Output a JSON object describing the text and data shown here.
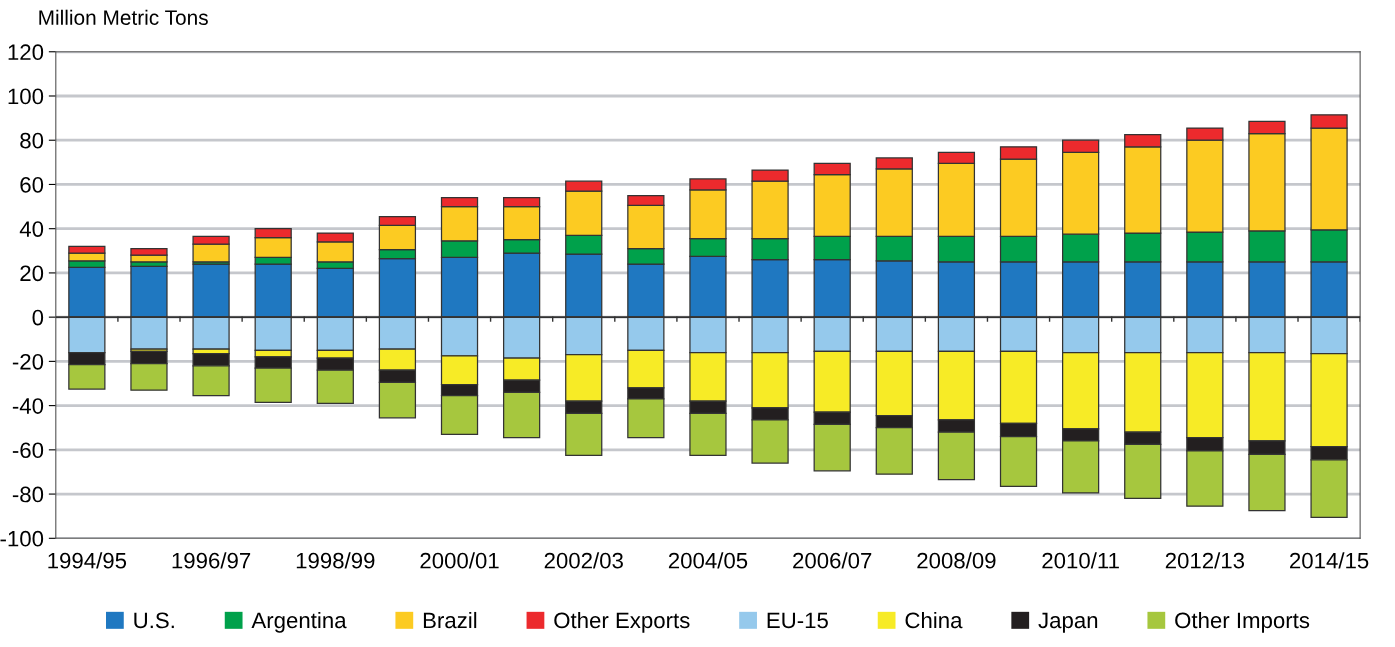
{
  "chart_data": {
    "type": "bar",
    "stacked": true,
    "ylabel": "Million Metric Tons",
    "categories": [
      "1994/95",
      null,
      "1996/97",
      null,
      "1998/99",
      null,
      "2000/01",
      null,
      "2002/03",
      null,
      "2004/05",
      null,
      "2006/07",
      null,
      "2008/09",
      null,
      "2010/11",
      null,
      "2012/13",
      null,
      "2014/15"
    ],
    "series": [
      {
        "name": "U.S.",
        "color": "#1f78c1",
        "values": [
          22.5,
          23,
          24,
          24,
          22,
          26.5,
          27,
          29,
          28.5,
          24,
          27.5,
          26,
          26,
          25.5,
          25,
          25,
          25,
          25,
          25,
          25,
          25
        ]
      },
      {
        "name": "Argentina",
        "color": "#00a14b",
        "values": [
          3,
          2,
          1,
          3,
          3,
          4,
          7.5,
          6,
          8.5,
          7,
          8,
          9.5,
          10.5,
          11,
          11.5,
          11.5,
          12.5,
          13,
          13.5,
          14,
          14.5
        ]
      },
      {
        "name": "Brazil",
        "color": "#fccb22",
        "values": [
          3.5,
          3,
          8,
          9,
          9,
          11,
          15.5,
          15,
          20,
          19.5,
          22,
          26,
          28,
          30.5,
          33,
          35,
          37,
          39,
          41.5,
          44,
          46
        ]
      },
      {
        "name": "Other Exports",
        "color": "#ec2a2d",
        "values": [
          3,
          3,
          3.5,
          4,
          4,
          4,
          4,
          4,
          4.5,
          4.5,
          5,
          5,
          5,
          5,
          5,
          5.5,
          5.5,
          5.5,
          5.5,
          5.5,
          6
        ]
      },
      {
        "name": "EU-15",
        "color": "#95c9ec",
        "values": [
          -16,
          -14.5,
          -14.5,
          -15,
          -15,
          -14.5,
          -17.5,
          -18.5,
          -17,
          -15,
          -16,
          -16,
          -15.5,
          -15.5,
          -15.5,
          -15.5,
          -16,
          -16,
          -16,
          -16,
          -16.5
        ]
      },
      {
        "name": "China",
        "color": "#f7eb26",
        "values": [
          null,
          -1,
          -2,
          -3,
          -3.5,
          -9.5,
          -13,
          -10,
          -21,
          -17,
          -22,
          -25,
          -27.5,
          -29,
          -31,
          -32.5,
          -34.5,
          -36,
          -38.5,
          -40,
          -42
        ]
      },
      {
        "name": "Japan",
        "color": "#231f20",
        "values": [
          -5.5,
          -5.5,
          -5.5,
          -5,
          -5.5,
          -5.5,
          -5,
          -5.5,
          -5.5,
          -5,
          -5.5,
          -5.5,
          -5.5,
          -5.5,
          -5.5,
          -6,
          -5.5,
          -5.5,
          -6,
          -6,
          -6
        ]
      },
      {
        "name": "Other Imports",
        "color": "#a6c73e",
        "values": [
          -11,
          -12,
          -13.5,
          -15.5,
          -15,
          -16,
          -17.5,
          -20.5,
          -19,
          -17.5,
          -19,
          -19.5,
          -21,
          -21,
          -21.5,
          -22.5,
          -23.5,
          -24.5,
          -25,
          -25.5,
          -26
        ]
      }
    ],
    "ylim": [
      -100,
      120
    ],
    "yticks": [
      -100,
      -80,
      -60,
      -40,
      -20,
      0,
      20,
      40,
      60,
      80,
      100,
      120
    ],
    "grid": "y",
    "legend": "bottom"
  }
}
